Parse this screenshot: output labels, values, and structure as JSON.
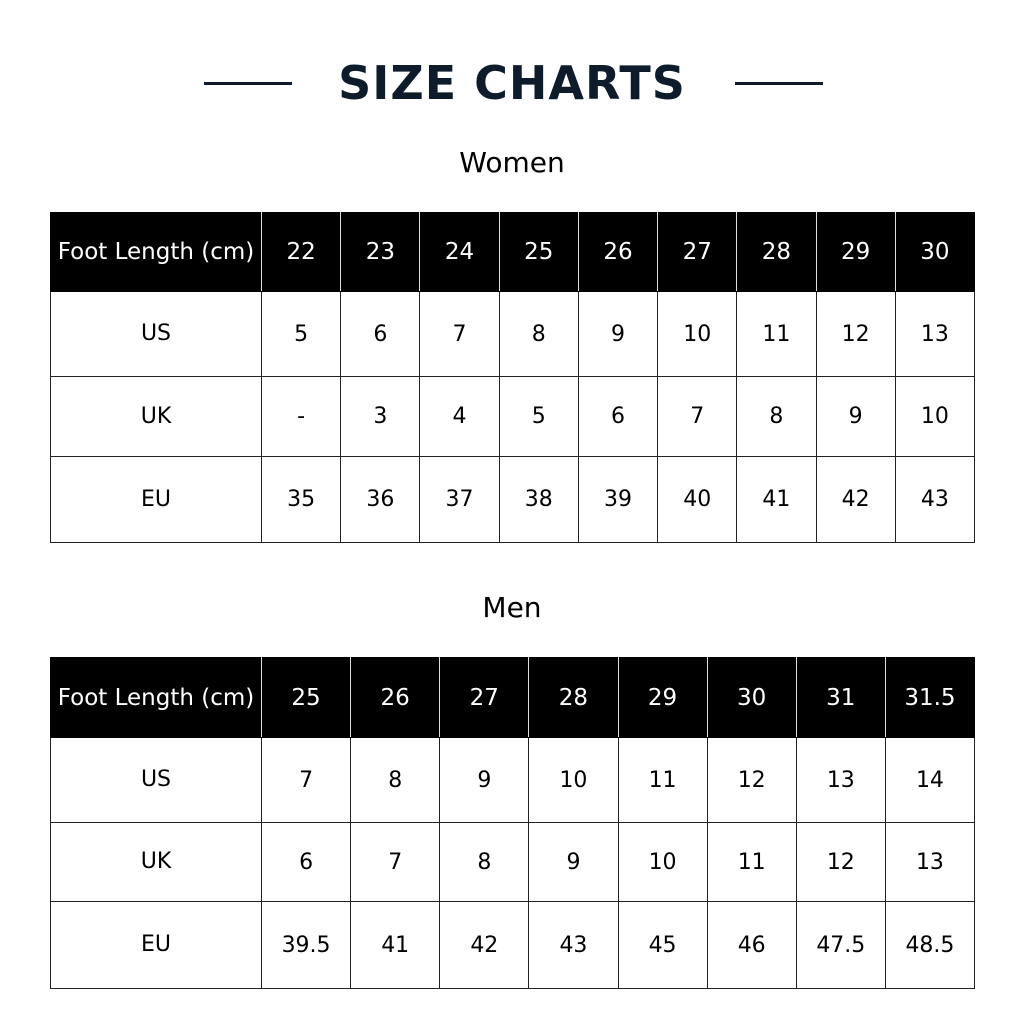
{
  "title": "SIZE CHARTS",
  "colors": {
    "title": "#0d1b2a",
    "header_bg": "#000000",
    "header_text": "#ffffff"
  },
  "tables": [
    {
      "heading": "Women",
      "header_label": "Foot Length (cm)",
      "foot_length": [
        "22",
        "23",
        "24",
        "25",
        "26",
        "27",
        "28",
        "29",
        "30"
      ],
      "rows": [
        {
          "label": "US",
          "values": [
            "5",
            "6",
            "7",
            "8",
            "9",
            "10",
            "11",
            "12",
            "13"
          ]
        },
        {
          "label": "UK",
          "values": [
            "-",
            "3",
            "4",
            "5",
            "6",
            "7",
            "8",
            "9",
            "10"
          ]
        },
        {
          "label": "EU",
          "values": [
            "35",
            "36",
            "37",
            "38",
            "39",
            "40",
            "41",
            "42",
            "43"
          ]
        }
      ]
    },
    {
      "heading": "Men",
      "header_label": "Foot Length (cm)",
      "foot_length": [
        "25",
        "26",
        "27",
        "28",
        "29",
        "30",
        "31",
        "31.5"
      ],
      "rows": [
        {
          "label": "US",
          "values": [
            "7",
            "8",
            "9",
            "10",
            "11",
            "12",
            "13",
            "14"
          ]
        },
        {
          "label": "UK",
          "values": [
            "6",
            "7",
            "8",
            "9",
            "10",
            "11",
            "12",
            "13"
          ]
        },
        {
          "label": "EU",
          "values": [
            "39.5",
            "41",
            "42",
            "43",
            "45",
            "46",
            "47.5",
            "48.5"
          ]
        }
      ]
    }
  ]
}
